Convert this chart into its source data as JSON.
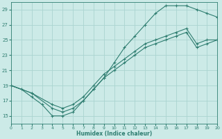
{
  "xlabel": "Humidex (Indice chaleur)",
  "bg_color": "#cceae7",
  "grid_color": "#aad4d0",
  "line_color": "#2e7d70",
  "xlim": [
    0,
    20
  ],
  "ylim": [
    14,
    30
  ],
  "xticks": [
    0,
    1,
    2,
    3,
    4,
    5,
    6,
    7,
    8,
    9,
    10,
    11,
    12,
    13,
    14,
    15,
    16,
    17,
    18,
    19,
    20
  ],
  "yticks": [
    15,
    17,
    19,
    21,
    23,
    25,
    27,
    29
  ],
  "series1_x": [
    0,
    1,
    2,
    3,
    4,
    5,
    6,
    7,
    8,
    9,
    10,
    11,
    12,
    13,
    14,
    15,
    16,
    17,
    18,
    19,
    20
  ],
  "series1_y": [
    19,
    18.5,
    17.5,
    16.5,
    15.0,
    15.0,
    15.5,
    17.0,
    18.5,
    20.0,
    22.0,
    24.0,
    25.5,
    27.0,
    28.5,
    29.5,
    29.5,
    29.5,
    29.0,
    28.5,
    28.0
  ],
  "series2_x": [
    0,
    2,
    4,
    5,
    6,
    7,
    8,
    9,
    10,
    11,
    12,
    13,
    14,
    15,
    16,
    17,
    18,
    19,
    20
  ],
  "series2_y": [
    19,
    18,
    16.5,
    16.0,
    16.5,
    17.5,
    19.0,
    20.5,
    21.5,
    22.5,
    23.5,
    24.5,
    25.0,
    25.5,
    26.0,
    26.5,
    24.5,
    25.0,
    25.0
  ],
  "series3_x": [
    0,
    2,
    4,
    5,
    6,
    7,
    8,
    9,
    10,
    11,
    12,
    13,
    14,
    15,
    16,
    17,
    18,
    19,
    20
  ],
  "series3_y": [
    19,
    18,
    16.0,
    15.5,
    16.0,
    17.0,
    18.5,
    20.0,
    21.0,
    22.0,
    23.0,
    24.0,
    24.5,
    25.0,
    25.5,
    26.0,
    24.0,
    24.5,
    25.0
  ]
}
